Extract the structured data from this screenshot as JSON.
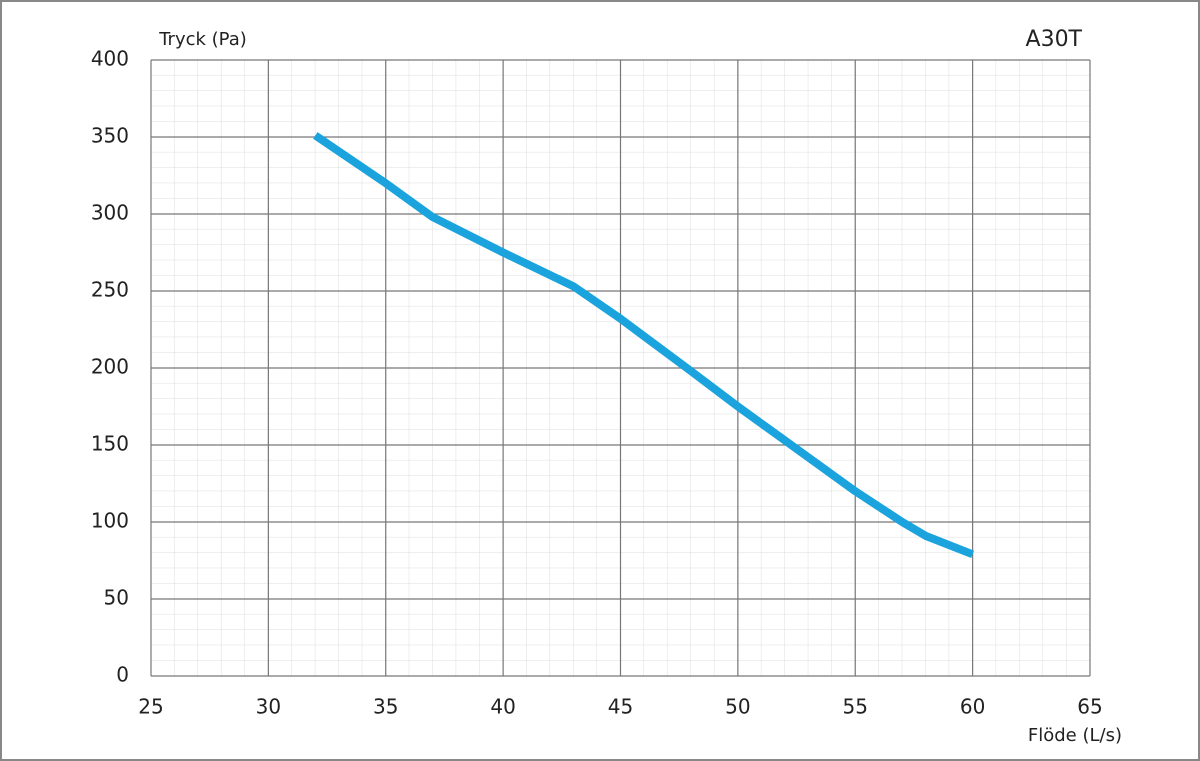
{
  "chart_data": {
    "type": "line",
    "title": "A30T",
    "y_label": "Tryck (Pa)",
    "x_label": "Flöde (L/s)",
    "x": [
      32,
      35,
      37,
      40,
      43,
      45,
      48,
      50,
      52,
      55,
      57,
      58,
      60
    ],
    "series": [
      {
        "name": "A30T",
        "color": "#1ba3dd",
        "values": [
          351,
          320,
          298,
          275,
          253,
          232,
          198,
          175,
          153,
          120,
          100,
          91,
          79
        ]
      }
    ],
    "xlim": [
      25,
      65
    ],
    "xticks": [
      25,
      30,
      35,
      40,
      45,
      50,
      55,
      60,
      65
    ],
    "ylim": [
      0,
      400
    ],
    "yticks": [
      0,
      50,
      100,
      150,
      200,
      250,
      300,
      350,
      400
    ],
    "grid": true,
    "minor_grid": true
  }
}
